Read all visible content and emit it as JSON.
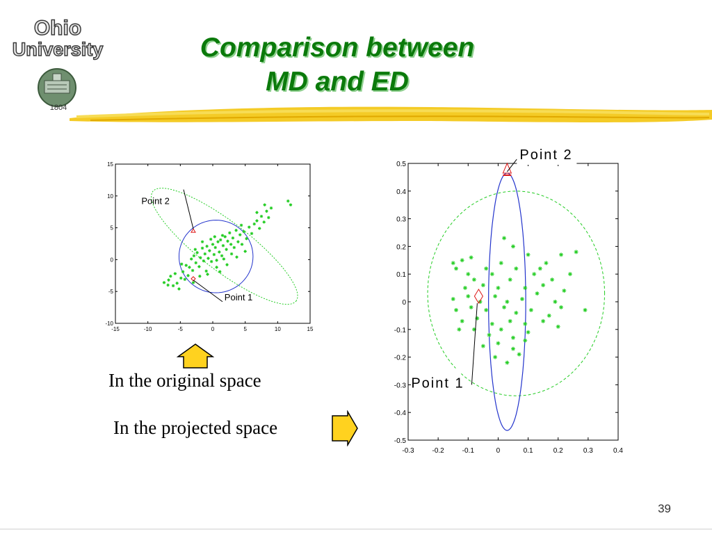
{
  "logo": {
    "line1": "Ohio",
    "line2": "University",
    "year": "1804"
  },
  "title": {
    "line1": "Comparison between",
    "line2": "MD and ED"
  },
  "captions": {
    "original": "In the original space",
    "projected": "In the projected space"
  },
  "page_number": "39",
  "colors": {
    "title": "#0b7a0b",
    "points": "#22cc22",
    "circle": "#2233cc",
    "marker": "#dd1111",
    "arrow_fill": "#ffd21f",
    "swoosh": "#f2c200"
  },
  "chart_data": [
    {
      "type": "scatter",
      "title": "",
      "xlim": [
        -15,
        15
      ],
      "ylim": [
        -10,
        15
      ],
      "xticks": [
        "-15",
        "-10",
        "-5",
        "0",
        "5",
        "10",
        "15"
      ],
      "yticks": [
        "-10",
        "-5",
        "0",
        "5",
        "10",
        "15"
      ],
      "annotations": [
        {
          "label": "Point 2",
          "x": -3,
          "y": 4.5
        },
        {
          "label": "Point 1",
          "x": -3,
          "y": -3
        }
      ],
      "shapes": {
        "circle": {
          "cx": 0.5,
          "cy": 0.5,
          "r": 5.7
        },
        "ellipse": {
          "cx": 1.8,
          "cy": 2.1,
          "major": 14,
          "minor": 3.8,
          "angle_deg": 38
        }
      },
      "points": [
        [
          -7.5,
          -3.6
        ],
        [
          -6.8,
          -3.2
        ],
        [
          -6.5,
          -2.6
        ],
        [
          -6.1,
          -4.1
        ],
        [
          -5.8,
          -2.2
        ],
        [
          -5.5,
          -3.7
        ],
        [
          -5.2,
          -4.6
        ],
        [
          -4.9,
          -2.9
        ],
        [
          -4.6,
          -1.9
        ],
        [
          -4.3,
          -3.1
        ],
        [
          -4.1,
          -0.9
        ],
        [
          -3.8,
          -2.5
        ],
        [
          -3.6,
          -1.2
        ],
        [
          -3.3,
          0.1
        ],
        [
          -3.1,
          -1.7
        ],
        [
          -2.9,
          0.6
        ],
        [
          -2.6,
          -0.5
        ],
        [
          -2.4,
          1.1
        ],
        [
          -2.1,
          -1.1
        ],
        [
          -1.9,
          0.3
        ],
        [
          -1.6,
          1.8
        ],
        [
          -1.4,
          -0.2
        ],
        [
          -1.2,
          0.9
        ],
        [
          -0.9,
          2.1
        ],
        [
          -0.7,
          0.2
        ],
        [
          -0.5,
          1.4
        ],
        [
          -0.2,
          -0.3
        ],
        [
          0.0,
          2.4
        ],
        [
          0.2,
          0.8
        ],
        [
          0.4,
          1.9
        ],
        [
          0.6,
          -0.1
        ],
        [
          0.8,
          2.8
        ],
        [
          1.0,
          1.2
        ],
        [
          1.2,
          3.1
        ],
        [
          1.4,
          0.6
        ],
        [
          1.6,
          2.2
        ],
        [
          1.9,
          3.6
        ],
        [
          2.1,
          1.6
        ],
        [
          2.3,
          2.9
        ],
        [
          2.6,
          4.2
        ],
        [
          2.8,
          2.4
        ],
        [
          3.1,
          3.4
        ],
        [
          3.3,
          1.9
        ],
        [
          3.6,
          4.6
        ],
        [
          3.9,
          2.8
        ],
        [
          4.2,
          3.9
        ],
        [
          4.5,
          2.4
        ],
        [
          4.8,
          4.4
        ],
        [
          5.2,
          3.3
        ],
        [
          5.6,
          5.1
        ],
        [
          6.0,
          4.1
        ],
        [
          6.4,
          5.6
        ],
        [
          6.8,
          6.1
        ],
        [
          7.2,
          4.9
        ],
        [
          7.5,
          6.8
        ],
        [
          7.9,
          5.9
        ],
        [
          8.3,
          7.6
        ],
        [
          8.6,
          6.6
        ],
        [
          9.0,
          8.1
        ],
        [
          -1.0,
          -1.8
        ],
        [
          -2.0,
          -2.6
        ],
        [
          0.6,
          -1.2
        ],
        [
          1.7,
          0.1
        ],
        [
          2.9,
          0.9
        ],
        [
          -0.3,
          3.2
        ],
        [
          -1.6,
          2.8
        ],
        [
          3.7,
          0.4
        ],
        [
          1.1,
          -1.9
        ],
        [
          -3.0,
          -3.6
        ],
        [
          -4.8,
          -0.7
        ],
        [
          5.0,
          1.3
        ],
        [
          -0.8,
          -2.3
        ],
        [
          6.8,
          7.4
        ],
        [
          8.0,
          8.6
        ],
        [
          -6.9,
          -4.0
        ],
        [
          1.5,
          3.8
        ],
        [
          2.2,
          -0.8
        ],
        [
          0.3,
          3.6
        ],
        [
          -2.7,
          1.6
        ],
        [
          4.4,
          5.4
        ],
        [
          11.6,
          9.2
        ],
        [
          12.0,
          8.6
        ]
      ]
    },
    {
      "type": "scatter",
      "title": "",
      "xlim": [
        -0.3,
        0.4
      ],
      "ylim": [
        -0.5,
        0.5
      ],
      "xticks": [
        "-0.3",
        "-0.2",
        "-0.1",
        "0",
        "0.1",
        "0.2",
        "0.3",
        "0.4"
      ],
      "yticks": [
        "-0.5",
        "-0.4",
        "-0.3",
        "-0.2",
        "-0.1",
        "0",
        "0.1",
        "0.2",
        "0.3",
        "0.4",
        "0.5"
      ],
      "annotations": [
        {
          "label": "Point 2",
          "x": 0.03,
          "y": 0.47
        },
        {
          "label": "Point 1",
          "x": -0.065,
          "y": 0.02
        }
      ],
      "shapes": {
        "circle_dashed": {
          "cx": 0.06,
          "cy": 0.03,
          "rx": 0.295,
          "ry": 0.37
        },
        "ellipse": {
          "cx": 0.03,
          "cy": 0.0,
          "rx": 0.062,
          "ry": 0.465
        }
      },
      "points": [
        [
          -0.15,
          0.14
        ],
        [
          -0.12,
          0.15
        ],
        [
          -0.09,
          0.16
        ],
        [
          -0.04,
          0.12
        ],
        [
          0.02,
          0.23
        ],
        [
          0.05,
          0.2
        ],
        [
          0.1,
          0.17
        ],
        [
          0.16,
          0.14
        ],
        [
          0.21,
          0.17
        ],
        [
          0.26,
          0.18
        ],
        [
          -0.14,
          0.12
        ],
        [
          -0.08,
          0.08
        ],
        [
          -0.02,
          0.1
        ],
        [
          0.01,
          0.14
        ],
        [
          0.06,
          0.12
        ],
        [
          0.12,
          0.1
        ],
        [
          0.18,
          0.08
        ],
        [
          0.24,
          0.1
        ],
        [
          -0.11,
          0.05
        ],
        [
          -0.05,
          0.06
        ],
        [
          0.0,
          0.05
        ],
        [
          0.04,
          0.08
        ],
        [
          0.09,
          0.05
        ],
        [
          0.15,
          0.06
        ],
        [
          0.22,
          0.04
        ],
        [
          -0.15,
          0.01
        ],
        [
          -0.1,
          0.02
        ],
        [
          -0.06,
          0.0
        ],
        [
          -0.01,
          0.02
        ],
        [
          0.03,
          0.0
        ],
        [
          0.08,
          0.01
        ],
        [
          0.13,
          0.03
        ],
        [
          0.19,
          0.0
        ],
        [
          0.29,
          -0.03
        ],
        [
          -0.14,
          -0.03
        ],
        [
          -0.09,
          -0.02
        ],
        [
          -0.04,
          -0.03
        ],
        [
          0.02,
          -0.02
        ],
        [
          0.06,
          -0.04
        ],
        [
          0.11,
          -0.03
        ],
        [
          0.17,
          -0.05
        ],
        [
          0.21,
          -0.02
        ],
        [
          -0.12,
          -0.07
        ],
        [
          -0.07,
          -0.06
        ],
        [
          -0.02,
          -0.08
        ],
        [
          0.04,
          -0.07
        ],
        [
          0.09,
          -0.08
        ],
        [
          0.15,
          -0.07
        ],
        [
          -0.08,
          -0.1
        ],
        [
          -0.03,
          -0.12
        ],
        [
          0.01,
          -0.1
        ],
        [
          0.05,
          -0.13
        ],
        [
          0.1,
          -0.11
        ],
        [
          -0.05,
          -0.16
        ],
        [
          0.0,
          -0.15
        ],
        [
          0.05,
          -0.17
        ],
        [
          0.09,
          -0.14
        ],
        [
          -0.01,
          -0.2
        ],
        [
          0.03,
          -0.22
        ],
        [
          0.07,
          -0.19
        ],
        [
          -0.1,
          0.1
        ],
        [
          0.14,
          0.12
        ],
        [
          0.2,
          -0.09
        ],
        [
          -0.13,
          -0.1
        ]
      ]
    }
  ]
}
